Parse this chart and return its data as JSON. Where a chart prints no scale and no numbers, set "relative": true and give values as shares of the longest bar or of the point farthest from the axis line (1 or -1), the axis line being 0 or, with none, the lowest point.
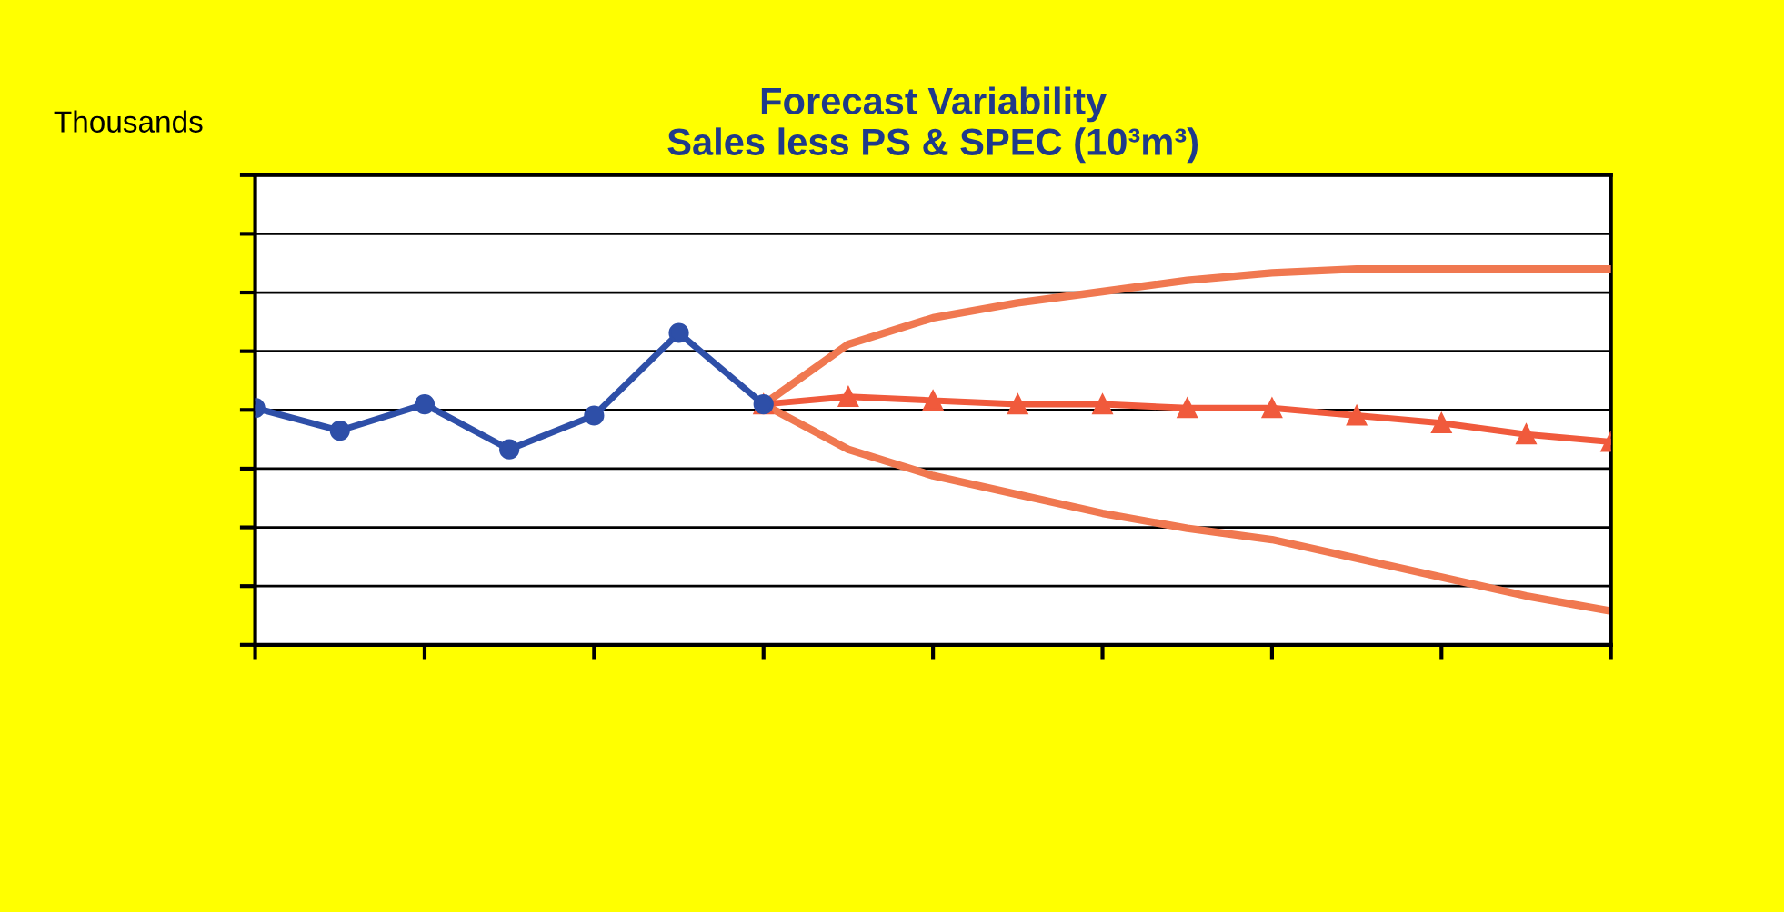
{
  "chart_data": {
    "type": "line",
    "title": "Forecast Variability\nSales less PS & SPEC (10³m³)",
    "ylabel": "Thousands",
    "relative": true,
    "grid": "y",
    "legend": false,
    "categories": [
      null,
      null,
      null,
      null,
      null,
      null,
      null,
      null,
      null,
      null,
      null,
      null,
      null,
      null,
      null,
      null,
      null
    ],
    "series": [
      {
        "color": "#2e4fa8",
        "marker": "circle",
        "values": [
          0.63,
          0.57,
          0.64,
          0.52,
          0.61,
          0.83,
          0.64,
          null,
          null,
          null,
          null,
          null,
          null,
          null,
          null,
          null,
          null
        ]
      },
      {
        "color": "#f05a3c",
        "marker": "triangle",
        "values": [
          null,
          null,
          null,
          null,
          null,
          null,
          0.64,
          0.66,
          0.65,
          0.64,
          0.64,
          0.63,
          0.63,
          0.61,
          0.59,
          0.56,
          0.54
        ]
      },
      {
        "color": "#f07850",
        "marker": "none",
        "values": [
          null,
          null,
          null,
          null,
          null,
          null,
          0.64,
          0.8,
          0.87,
          0.91,
          0.94,
          0.97,
          0.99,
          1,
          1,
          1,
          1
        ]
      },
      {
        "color": "#f07850",
        "marker": "none",
        "values": [
          null,
          null,
          null,
          null,
          null,
          null,
          0.64,
          0.52,
          0.45,
          0.4,
          0.35,
          0.31,
          0.28,
          0.23,
          0.18,
          0.13,
          0.09
        ]
      }
    ]
  }
}
